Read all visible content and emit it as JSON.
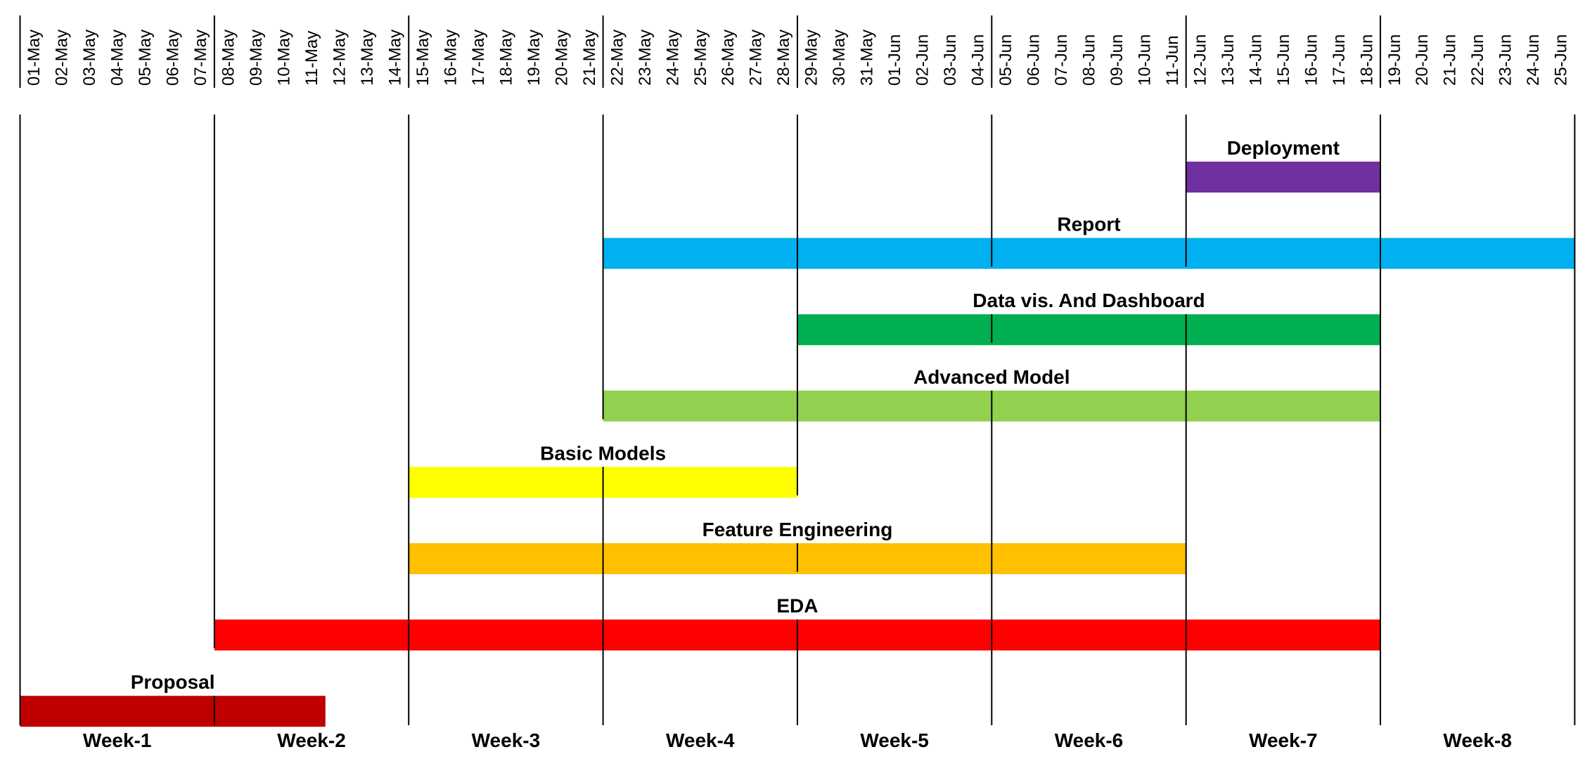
{
  "chart_data": {
    "type": "gantt",
    "x_dates": [
      "01-May",
      "02-May",
      "03-May",
      "04-May",
      "05-May",
      "06-May",
      "07-May",
      "08-May",
      "09-May",
      "10-May",
      "11-May",
      "12-May",
      "13-May",
      "14-May",
      "15-May",
      "16-May",
      "17-May",
      "18-May",
      "19-May",
      "20-May",
      "21-May",
      "22-May",
      "23-May",
      "24-May",
      "25-May",
      "26-May",
      "27-May",
      "28-May",
      "29-May",
      "30-May",
      "31-May",
      "01-Jun",
      "02-Jun",
      "03-Jun",
      "04-Jun",
      "05-Jun",
      "06-Jun",
      "07-Jun",
      "08-Jun",
      "09-Jun",
      "10-Jun",
      "11-Jun",
      "12-Jun",
      "13-Jun",
      "14-Jun",
      "15-Jun",
      "16-Jun",
      "17-Jun",
      "18-Jun",
      "19-Jun",
      "20-Jun",
      "21-Jun",
      "22-Jun",
      "23-Jun",
      "24-Jun",
      "25-Jun"
    ],
    "weeks": [
      "Week-1",
      "Week-2",
      "Week-3",
      "Week-4",
      "Week-5",
      "Week-6",
      "Week-7",
      "Week-8"
    ],
    "tasks": [
      {
        "name": "Deployment",
        "start": "12-Jun",
        "end": "18-Jun",
        "color": "#7030A0"
      },
      {
        "name": "Report",
        "start": "22-May",
        "end": "25-Jun",
        "color": "#00B0F0"
      },
      {
        "name": "Data vis. And Dashboard",
        "start": "29-May",
        "end": "18-Jun",
        "color": "#00B050"
      },
      {
        "name": "Advanced Model",
        "start": "22-May",
        "end": "18-Jun",
        "color": "#92D050"
      },
      {
        "name": "Basic Models",
        "start": "15-May",
        "end": "28-May",
        "color": "#FFFF00"
      },
      {
        "name": "Feature Engineering",
        "start": "15-May",
        "end": "11-Jun",
        "color": "#FFC000"
      },
      {
        "name": "EDA",
        "start": "08-May",
        "end": "18-Jun",
        "color": "#FF0000"
      },
      {
        "name": "Proposal",
        "start": "01-May",
        "end": "11-May",
        "color": "#C00000"
      }
    ]
  }
}
